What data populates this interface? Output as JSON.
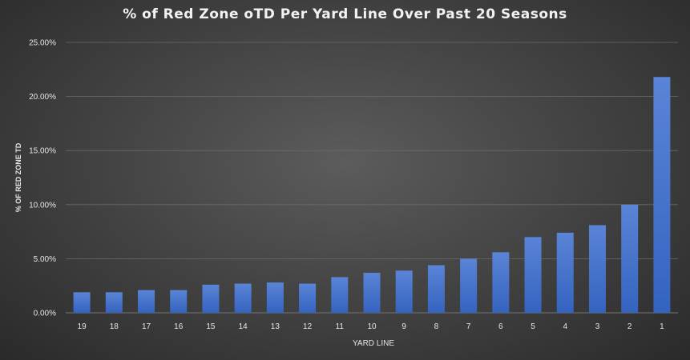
{
  "chart_data": {
    "type": "bar",
    "title": "% of Red Zone oTD Per Yard Line Over Past 20 Seasons",
    "xlabel": "YARD LINE",
    "ylabel": "% OF RED ZONE TD",
    "ylim": [
      0,
      25
    ],
    "yticks": [
      "0.00%",
      "5.00%",
      "10.00%",
      "15.00%",
      "20.00%",
      "25.00%"
    ],
    "grid": true,
    "legend": "none",
    "categories": [
      "19",
      "18",
      "17",
      "16",
      "15",
      "14",
      "13",
      "12",
      "11",
      "10",
      "9",
      "8",
      "7",
      "6",
      "5",
      "4",
      "3",
      "2",
      "1"
    ],
    "values": [
      1.9,
      1.9,
      2.1,
      2.1,
      2.6,
      2.7,
      2.8,
      2.7,
      3.3,
      3.7,
      3.9,
      4.4,
      5.0,
      5.6,
      7.0,
      7.4,
      8.1,
      10.0,
      21.8
    ],
    "colors": {
      "bar_top": "#5a84d6",
      "bar_bottom": "#3463c0",
      "grid": "#6a6a6a"
    }
  }
}
